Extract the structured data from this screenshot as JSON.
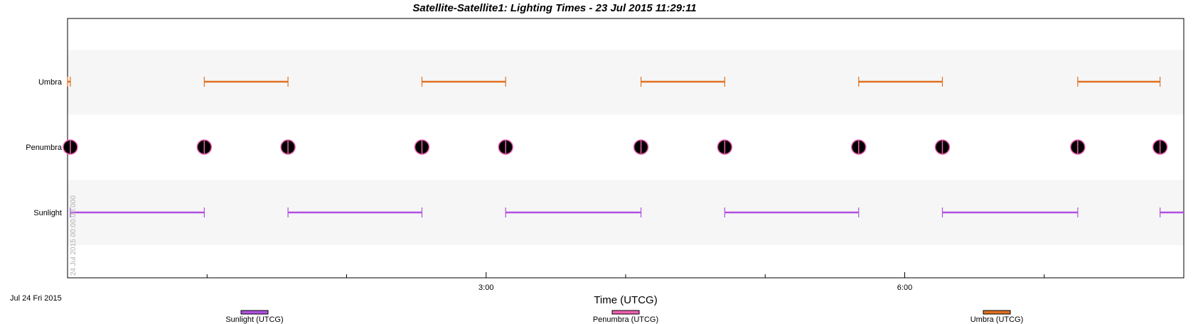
{
  "chart_data": {
    "type": "timeline",
    "title": "Satellite-Satellite1:  Lighting Times - 23 Jul 2015 11:29:11",
    "xlabel": "Time (UTCG)",
    "start_label": "Jul 24 Fri 2015",
    "vertical_stamp": "24 Jul 2015 00:00:00.000",
    "x_range_hours": [
      0.0,
      8.0
    ],
    "x_ticks": [
      {
        "value": 3.0,
        "label": "3:00"
      },
      {
        "value": 6.0,
        "label": "6:00"
      }
    ],
    "x_minor_ticks": [
      1.0,
      2.0,
      4.0,
      5.0,
      7.0
    ],
    "rows": [
      "Umbra",
      "Penumbra",
      "Sunlight"
    ],
    "series": [
      {
        "name": "Umbra",
        "legend": "Umbra (UTCG)",
        "color": "#e07020",
        "intervals": [
          [
            0.0,
            0.02
          ],
          [
            0.98,
            1.58
          ],
          [
            2.54,
            3.14
          ],
          [
            4.11,
            4.71
          ],
          [
            5.67,
            6.27
          ],
          [
            7.24,
            7.83
          ]
        ]
      },
      {
        "name": "Penumbra",
        "legend": "Penumbra (UTCG)",
        "color": "#f060b0",
        "marker_color": "#000000",
        "events": [
          0.02,
          0.98,
          1.58,
          2.54,
          3.14,
          4.11,
          4.71,
          5.67,
          6.27,
          7.24,
          7.83
        ]
      },
      {
        "name": "Sunlight",
        "legend": "Sunlight (UTCG)",
        "color": "#b050e0",
        "intervals": [
          [
            0.02,
            0.98
          ],
          [
            1.58,
            2.54
          ],
          [
            3.14,
            4.11
          ],
          [
            4.71,
            5.67
          ],
          [
            6.27,
            7.24
          ],
          [
            7.83,
            8.0
          ]
        ]
      }
    ],
    "grid": "alternating row bands",
    "legend_position": "bottom"
  }
}
